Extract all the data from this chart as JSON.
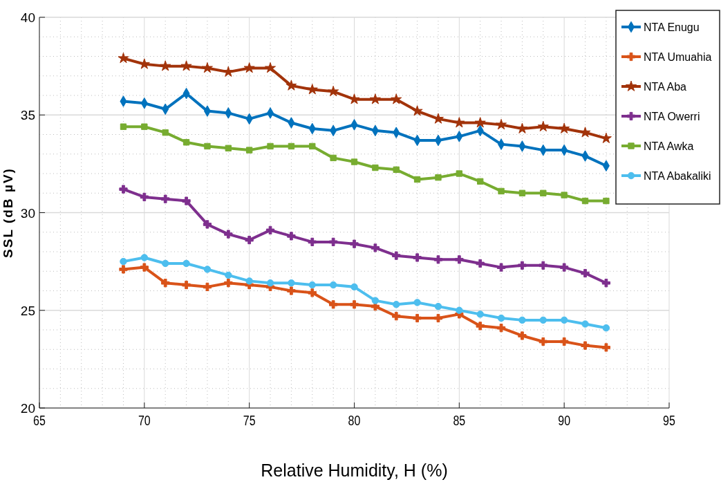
{
  "chart_data": {
    "type": "line",
    "xlabel": "Relative Humidity, H (%)",
    "ylabel": "SSL (dB µV)",
    "x": [
      69,
      70,
      71,
      72,
      73,
      74,
      75,
      76,
      77,
      78,
      79,
      80,
      81,
      82,
      83,
      84,
      85,
      86,
      87,
      88,
      89,
      90,
      91,
      92
    ],
    "xlim": [
      65,
      95
    ],
    "xticks": [
      65,
      70,
      75,
      80,
      85,
      90,
      95
    ],
    "ylim": [
      20,
      40
    ],
    "yticks": [
      20,
      25,
      30,
      35,
      40
    ],
    "grid": true,
    "legend": "top right",
    "line_style": "solid",
    "series": [
      {
        "name": "NTA Enugu",
        "color": "#0072bd",
        "marker": "diamond",
        "values": [
          35.7,
          35.6,
          35.3,
          36.1,
          35.2,
          35.1,
          34.8,
          35.1,
          34.6,
          34.3,
          34.2,
          34.5,
          34.2,
          34.1,
          33.7,
          33.7,
          33.9,
          34.2,
          33.5,
          33.4,
          33.2,
          33.2,
          32.9,
          32.4
        ]
      },
      {
        "name": "NTA Umuahia",
        "color": "#d95319",
        "marker": "cross",
        "values": [
          27.1,
          27.2,
          26.4,
          26.3,
          26.2,
          26.4,
          26.3,
          26.2,
          26.0,
          25.9,
          25.3,
          25.3,
          25.2,
          24.7,
          24.6,
          24.6,
          24.8,
          24.2,
          24.1,
          23.7,
          23.4,
          23.4,
          23.2,
          23.1
        ]
      },
      {
        "name": "NTA Aba",
        "color": "#a2330a",
        "marker": "star",
        "values": [
          37.9,
          37.6,
          37.5,
          37.5,
          37.4,
          37.2,
          37.4,
          37.4,
          36.5,
          36.3,
          36.2,
          35.8,
          35.8,
          35.8,
          35.2,
          34.8,
          34.6,
          34.6,
          34.5,
          34.3,
          34.4,
          34.3,
          34.1,
          33.8
        ]
      },
      {
        "name": "NTA Owerri",
        "color": "#7e2f8e",
        "marker": "cross",
        "values": [
          31.2,
          30.8,
          30.7,
          30.6,
          29.4,
          28.9,
          28.6,
          29.1,
          28.8,
          28.5,
          28.5,
          28.4,
          28.2,
          27.8,
          27.7,
          27.6,
          27.6,
          27.4,
          27.2,
          27.3,
          27.3,
          27.2,
          26.9,
          26.4
        ]
      },
      {
        "name": "NTA Awka",
        "color": "#77ac30",
        "marker": "square",
        "values": [
          34.4,
          34.4,
          34.1,
          33.6,
          33.4,
          33.3,
          33.2,
          33.4,
          33.4,
          33.4,
          32.8,
          32.6,
          32.3,
          32.2,
          31.7,
          31.8,
          32.0,
          31.6,
          31.1,
          31.0,
          31.0,
          30.9,
          30.6,
          30.6
        ]
      },
      {
        "name": "NTA Abakaliki",
        "color": "#4dbeee",
        "marker": "circle",
        "values": [
          27.5,
          27.7,
          27.4,
          27.4,
          27.1,
          26.8,
          26.5,
          26.4,
          26.4,
          26.3,
          26.3,
          26.2,
          25.5,
          25.3,
          25.4,
          25.2,
          25.0,
          24.8,
          24.6,
          24.5,
          24.5,
          24.5,
          24.3,
          24.1
        ]
      }
    ]
  }
}
